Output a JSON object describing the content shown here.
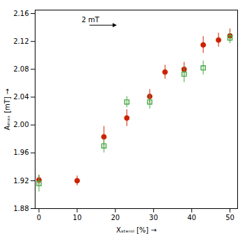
{
  "chart_data": {
    "type": "scatter",
    "xlabel": "Xₛₜₑᵣₒₗ [%]",
    "ylabel": "Aₘₐₓ [mT]",
    "xlim": [
      -1,
      52
    ],
    "ylim": [
      1.88,
      2.165
    ],
    "xticks": [
      0,
      10,
      20,
      30,
      40,
      50
    ],
    "yticks": [
      1.88,
      1.92,
      1.96,
      {
        "value": 2.0,
        "label": "2.00"
      },
      2.04,
      2.08,
      2.12,
      2.16
    ],
    "grid": false,
    "series": [
      {
        "color": "#cc2200",
        "marker": "circle",
        "x": [
          0,
          10,
          17,
          23,
          29,
          33,
          38,
          43,
          47,
          50
        ],
        "values": [
          1.921,
          1.92,
          1.983,
          2.01,
          2.041,
          2.076,
          2.08,
          2.115,
          2.122,
          2.128
        ],
        "yerr": [
          0.007,
          0.007,
          0.015,
          0.012,
          0.01,
          0.01,
          0.01,
          0.012,
          0.01,
          0.01
        ]
      },
      {
        "color": "#44aa44",
        "marker": "open_square",
        "x": [
          0,
          17,
          23,
          29,
          38,
          43,
          50
        ],
        "values": [
          1.916,
          1.97,
          2.033,
          2.033,
          2.073,
          2.082,
          2.125
        ],
        "yerr": [
          0.012,
          0.01,
          0.008,
          0.01,
          0.012,
          0.01,
          0.008
        ]
      }
    ],
    "annotations": [
      {
        "text": "2 mT"
      }
    ]
  }
}
